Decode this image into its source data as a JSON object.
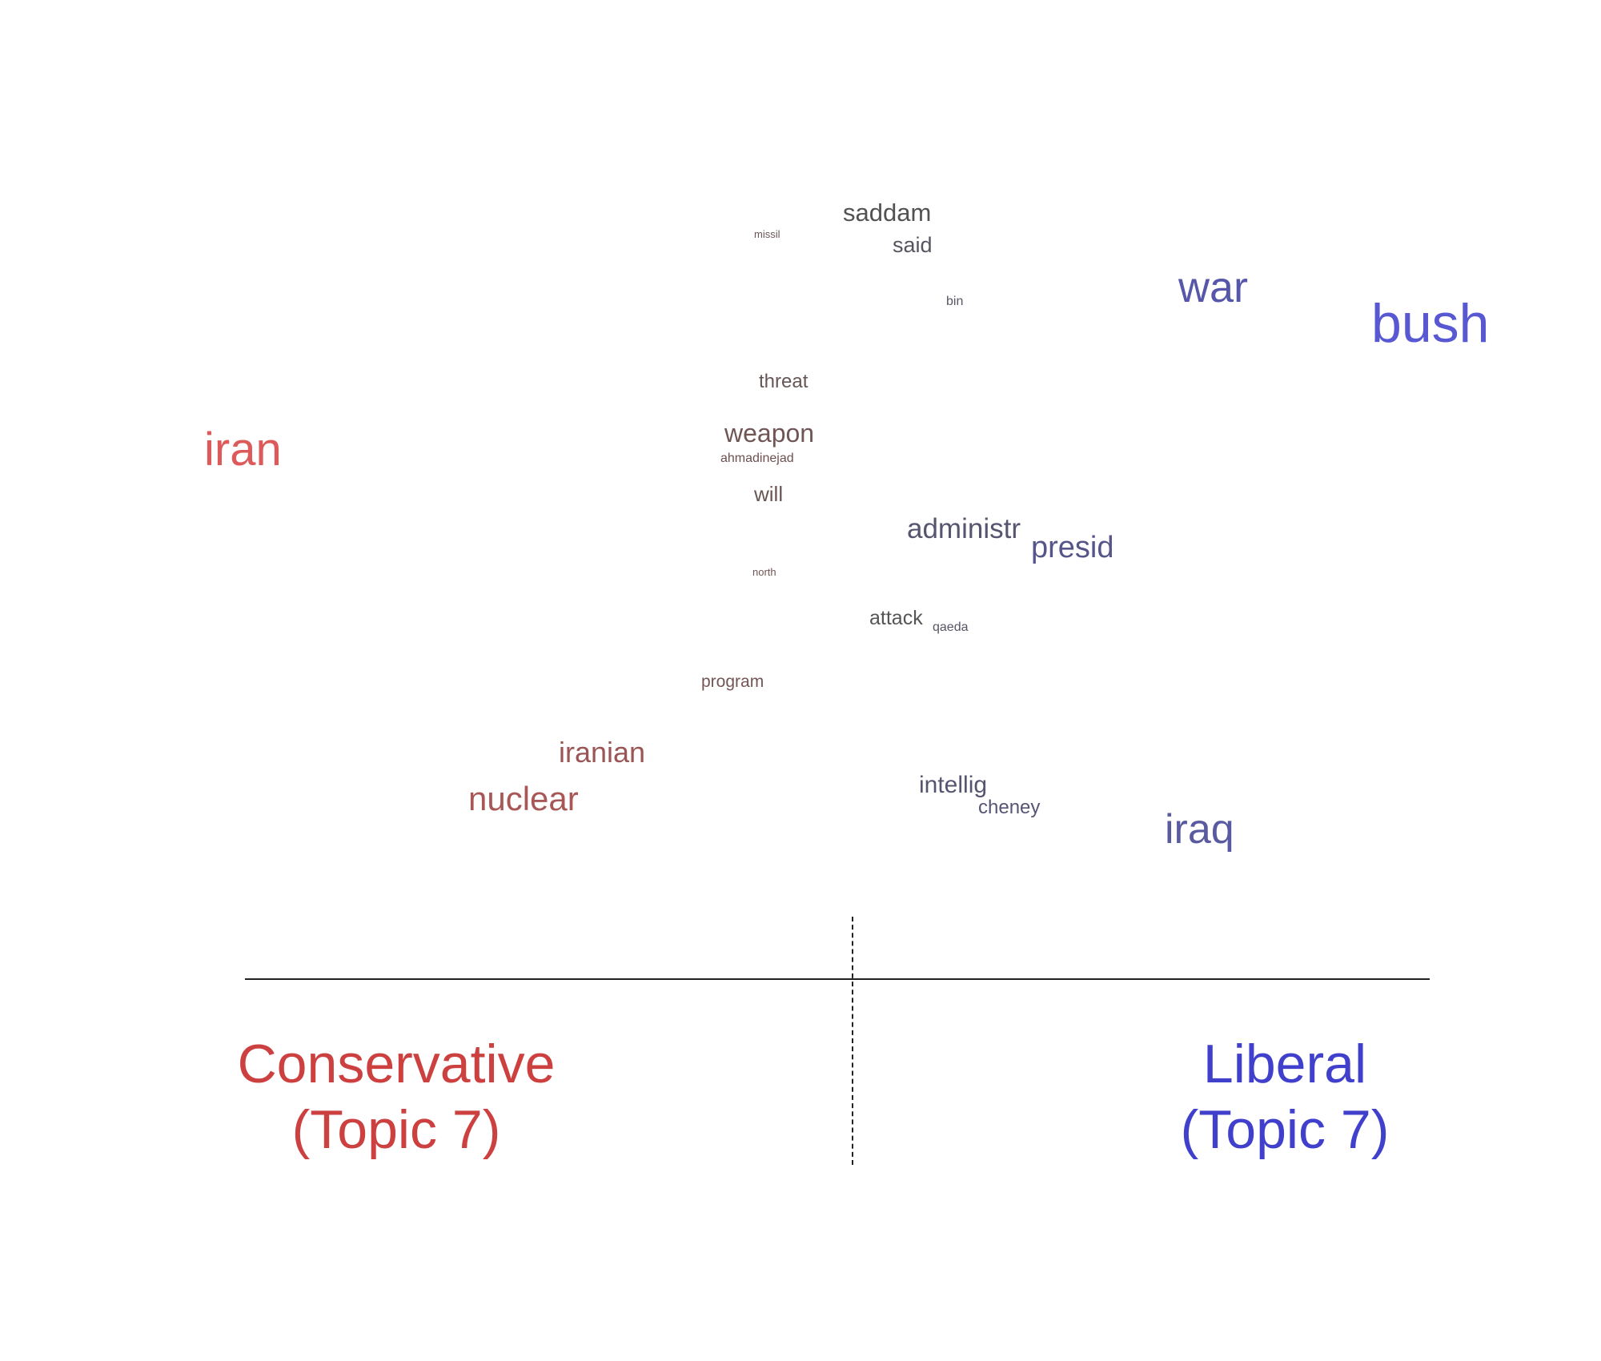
{
  "colors": {
    "conservative": "#cc4040",
    "liberal": "#4040cc"
  },
  "words": [
    {
      "text": "saddam",
      "color": "#525252"
    },
    {
      "text": "missil",
      "color": "#6a5555"
    },
    {
      "text": "said",
      "color": "#555560"
    },
    {
      "text": "bin",
      "color": "#555566"
    },
    {
      "text": "war",
      "color": "#5656aa"
    },
    {
      "text": "bush",
      "color": "#5858d2"
    },
    {
      "text": "threat",
      "color": "#665555"
    },
    {
      "text": "iran",
      "color": "#dd5a5a"
    },
    {
      "text": "weapon",
      "color": "#705555"
    },
    {
      "text": "ahmadinejad",
      "color": "#6e5050"
    },
    {
      "text": "will",
      "color": "#6a5555"
    },
    {
      "text": "administr",
      "color": "#555570"
    },
    {
      "text": "presid",
      "color": "#55558a"
    },
    {
      "text": "north",
      "color": "#705555"
    },
    {
      "text": "attack",
      "color": "#555555"
    },
    {
      "text": "qaeda",
      "color": "#555565"
    },
    {
      "text": "program",
      "color": "#745555"
    },
    {
      "text": "iranian",
      "color": "#9a5555"
    },
    {
      "text": "nuclear",
      "color": "#a85656"
    },
    {
      "text": "intellig",
      "color": "#555570"
    },
    {
      "text": "cheney",
      "color": "#555575"
    },
    {
      "text": "iraq",
      "color": "#5a5aa0"
    }
  ],
  "labels": {
    "conservative": {
      "line1": "Conservative",
      "line2": "(Topic 7)"
    },
    "liberal": {
      "line1": "Liberal",
      "line2": "(Topic 7)"
    }
  }
}
